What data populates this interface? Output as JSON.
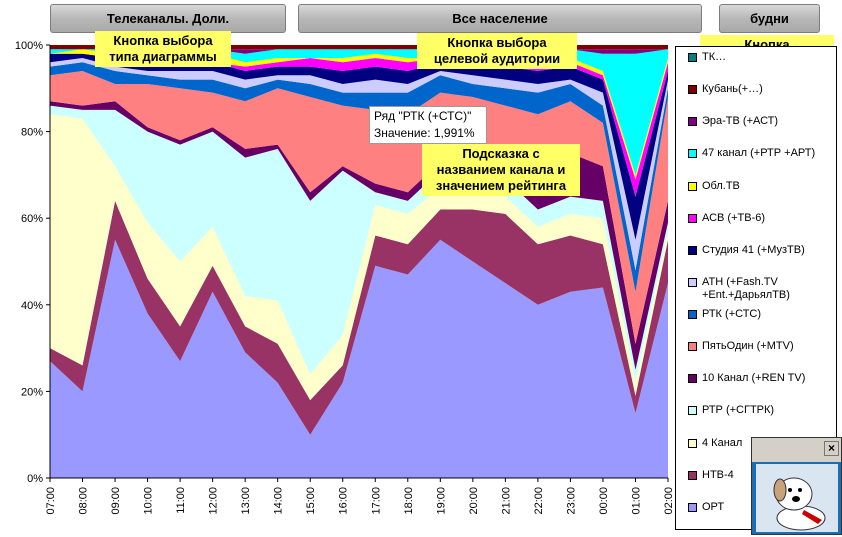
{
  "buttons": {
    "chart_type": "Телеканалы. Доли.",
    "audience": "Все население",
    "days": "будни"
  },
  "callouts": {
    "chart_type": "Кнопка выбора\nтипа диаграммы",
    "audience": "Кнопка выбора\nцелевой аудитории",
    "days": "Кнопка\nпереключения\nбудни/выходные",
    "tooltip_hint": "Подсказка с\nназванием канала и\nзначением рейтинга"
  },
  "tooltip": {
    "series": "Ряд \"РТК (+СТС)\"",
    "value": "Значение: 1,991%"
  },
  "assistant": {
    "close": "×"
  },
  "chart_data": {
    "type": "area",
    "stacked": true,
    "normalized": true,
    "x_ticks": [
      "07:00",
      "08:00",
      "09:00",
      "10:00",
      "11:00",
      "12:00",
      "13:00",
      "14:00",
      "15:00",
      "16:00",
      "17:00",
      "18:00",
      "19:00",
      "20:00",
      "21:00",
      "22:00",
      "23:00",
      "00:00",
      "01:00",
      "02:00"
    ],
    "ylim": [
      0,
      100
    ],
    "y_ticks": [
      "0%",
      "20%",
      "40%",
      "60%",
      "80%",
      "100%"
    ],
    "grid": false,
    "legend_position": "right",
    "series": [
      {
        "name": "ОРТ",
        "color": "#9999ff",
        "values": [
          27,
          20,
          55,
          38,
          27,
          43,
          29,
          22,
          10,
          22,
          49,
          47,
          55,
          50,
          45,
          40,
          43,
          44,
          15,
          45
        ]
      },
      {
        "name": "НТВ-4",
        "color": "#993366",
        "values": [
          3,
          6,
          9,
          8,
          8,
          6,
          6,
          9,
          8,
          4,
          7,
          7,
          7,
          12,
          16,
          14,
          13,
          10,
          4,
          10
        ]
      },
      {
        "name": "4 Канал",
        "color": "#ffffcc",
        "values": [
          54,
          57,
          8,
          13,
          15,
          9,
          7,
          10,
          6,
          7,
          7,
          7,
          5,
          6,
          4,
          4,
          5,
          6,
          3,
          2
        ]
      },
      {
        "name": "РТР (+СГТРК)",
        "color": "#ccffff",
        "values": [
          2,
          2,
          13,
          21,
          27,
          22,
          32,
          35,
          40,
          38,
          3,
          3,
          4,
          4,
          4,
          4,
          4,
          4,
          3,
          2
        ]
      },
      {
        "name": "10 Канал (+REN TV)",
        "color": "#660066",
        "values": [
          1,
          1,
          2,
          1,
          1,
          1,
          2,
          1,
          2,
          1,
          2,
          2,
          2,
          4,
          5,
          8,
          10,
          8,
          6,
          5
        ]
      },
      {
        "name": "ПятьОдин (+MTV)",
        "color": "#ff8080",
        "values": [
          6,
          8,
          4,
          10,
          12,
          8,
          11,
          13,
          22,
          14,
          17,
          18,
          16,
          12,
          12,
          14,
          12,
          10,
          12,
          24
        ]
      },
      {
        "name": "РТК (+СТС)",
        "color": "#0066cc",
        "values": [
          2,
          2,
          3,
          2,
          2,
          3,
          3,
          2,
          3,
          3,
          4,
          5,
          4,
          3,
          4,
          5,
          4,
          4,
          5,
          2
        ]
      },
      {
        "name": "АТН (+Fash.TV +Ent.+ДарьялТВ)",
        "color": "#ccccff",
        "values": [
          1,
          1,
          1,
          1,
          2,
          2,
          2,
          1,
          2,
          2,
          3,
          2,
          1,
          2,
          2,
          2,
          1,
          3,
          7,
          2
        ]
      },
      {
        "name": "Студия 41 (+МузТВ)",
        "color": "#000080",
        "values": [
          2,
          1,
          2,
          2,
          2,
          2,
          2,
          2,
          2,
          3,
          3,
          3,
          2,
          2,
          3,
          3,
          3,
          3,
          10,
          2
        ]
      },
      {
        "name": "АСВ (+ТВ-6)",
        "color": "#ff00ff",
        "values": [
          0,
          0,
          0,
          0,
          0,
          0,
          1,
          1,
          2,
          2,
          2,
          2,
          1,
          1,
          1,
          1,
          1,
          1,
          4,
          2
        ]
      },
      {
        "name": "Обл.ТВ",
        "color": "#ffff00",
        "values": [
          0,
          1,
          1,
          0,
          2,
          2,
          1,
          1,
          0,
          1,
          1,
          1,
          0,
          1,
          1,
          1,
          1,
          1,
          1,
          1
        ]
      },
      {
        "name": "47 канал (+РТР +АРТ)",
        "color": "#00ffff",
        "values": [
          1,
          0,
          1,
          1,
          1,
          1,
          2,
          2,
          2,
          2,
          1,
          2,
          2,
          2,
          2,
          2,
          2,
          4,
          28,
          2
        ]
      },
      {
        "name": "Эра-ТВ (+АСТ)",
        "color": "#800080",
        "values": [
          0,
          0,
          0,
          1,
          0,
          0,
          1,
          0,
          0,
          0,
          0,
          0,
          0,
          0,
          0,
          1,
          0,
          1,
          1,
          0
        ]
      },
      {
        "name": "Кубань(+…)",
        "color": "#800000",
        "values": [
          1,
          1,
          1,
          1,
          1,
          1,
          1,
          1,
          1,
          1,
          1,
          1,
          1,
          1,
          1,
          1,
          1,
          1,
          1,
          1
        ]
      },
      {
        "name": "ТК…",
        "color": "#008080",
        "values": [
          0,
          0,
          0,
          1,
          0,
          0,
          0,
          0,
          0,
          0,
          0,
          0,
          0,
          0,
          0,
          0,
          0,
          0,
          0,
          0
        ]
      }
    ]
  }
}
